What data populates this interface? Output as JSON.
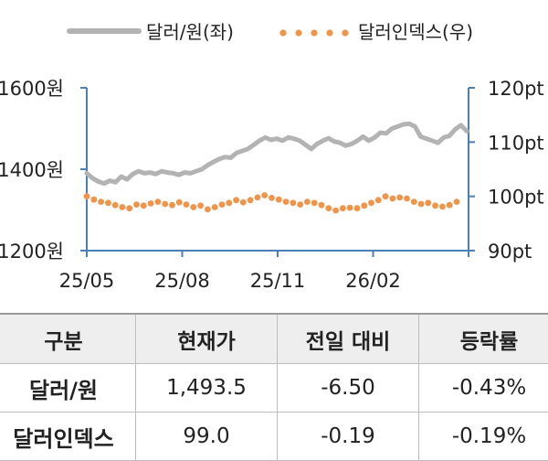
{
  "chart_data": {
    "type": "line",
    "x_tick_labels": [
      "25/05",
      "25/08",
      "25/11",
      "26/02"
    ],
    "left_axis": {
      "ticks": [
        1200,
        1400,
        1600
      ],
      "tick_labels": [
        "1200원",
        "1400원",
        "1600원"
      ],
      "range": [
        1200,
        1600
      ]
    },
    "right_axis": {
      "ticks": [
        90,
        100,
        110,
        120
      ],
      "tick_labels": [
        "90pt",
        "100pt",
        "110pt",
        "120pt"
      ],
      "range": [
        90,
        120
      ]
    },
    "legend": {
      "position": "top",
      "entries": [
        "달러/원(좌)",
        "달러인덱스(우)"
      ]
    },
    "series": [
      {
        "name": "달러/원(좌)",
        "axis": "left",
        "color": "#b3b3b3",
        "style": "solid",
        "values": [
          1390,
          1378,
          1370,
          1365,
          1372,
          1368,
          1382,
          1375,
          1388,
          1395,
          1390,
          1392,
          1388,
          1395,
          1392,
          1390,
          1386,
          1392,
          1390,
          1395,
          1400,
          1410,
          1418,
          1425,
          1430,
          1428,
          1440,
          1445,
          1450,
          1460,
          1470,
          1478,
          1472,
          1475,
          1470,
          1478,
          1475,
          1470,
          1460,
          1450,
          1462,
          1470,
          1476,
          1468,
          1465,
          1458,
          1462,
          1470,
          1480,
          1470,
          1478,
          1490,
          1488,
          1500,
          1505,
          1510,
          1512,
          1505,
          1480,
          1475,
          1470,
          1465,
          1478,
          1482,
          1498,
          1508,
          1493.5
        ]
      },
      {
        "name": "달러인덱스(우)",
        "axis": "right",
        "color": "#f0944a",
        "style": "dotted",
        "values": [
          100.0,
          99.4,
          99.0,
          98.8,
          98.4,
          98.0,
          97.8,
          98.5,
          98.3,
          98.7,
          99.0,
          98.6,
          98.4,
          98.9,
          98.5,
          98.0,
          98.3,
          97.6,
          98.0,
          98.5,
          98.8,
          99.3,
          98.9,
          99.3,
          99.8,
          100.2,
          99.7,
          99.4,
          99.0,
          98.8,
          98.5,
          99.0,
          98.8,
          98.4,
          97.8,
          97.4,
          97.8,
          97.9,
          97.8,
          98.3,
          98.8,
          99.3,
          100.0,
          99.6,
          99.8,
          99.6,
          99.0,
          98.6,
          98.8,
          98.3,
          98.1,
          98.4,
          99.0
        ]
      }
    ]
  },
  "table": {
    "headers": [
      "구분",
      "현재가",
      "전일 대비",
      "등락률"
    ],
    "rows": [
      {
        "label": "달러/원",
        "price": "1,493.5",
        "change": "-6.50",
        "pct": "-0.43%"
      },
      {
        "label": "달러인덱스",
        "price": "99.0",
        "change": "-0.19",
        "pct": "-0.19%"
      }
    ]
  }
}
